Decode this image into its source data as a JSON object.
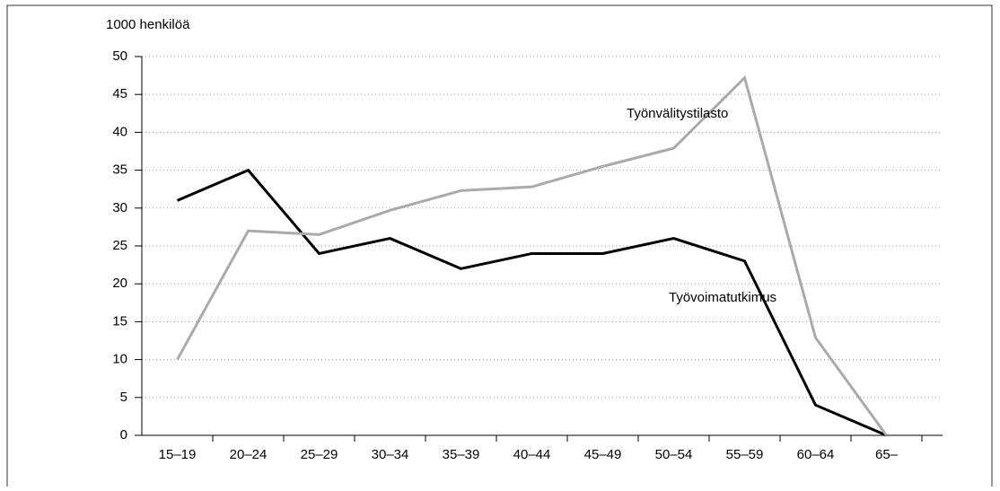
{
  "chart_data": {
    "type": "line",
    "y_label": "1000 henkilöä",
    "categories": [
      "15–19",
      "20–24",
      "25–29",
      "30–34",
      "35–39",
      "40–44",
      "45–49",
      "50–54",
      "55–59",
      "60–64",
      "65–"
    ],
    "series": [
      {
        "name": "Työvoimatutkimus",
        "color": "#000000",
        "values": [
          31,
          35,
          24,
          26,
          22,
          24,
          24,
          26,
          23,
          4,
          0
        ]
      },
      {
        "name": "Työnvälitystilasto",
        "color": "#aaaaaa",
        "values": [
          10,
          27,
          26.5,
          29.7,
          32.3,
          32.8,
          35.5,
          37.9,
          47.2,
          12.9,
          0
        ]
      }
    ],
    "ylim": [
      0,
      50
    ],
    "yticks": [
      0,
      5,
      10,
      15,
      20,
      25,
      30,
      35,
      40,
      45,
      50
    ],
    "grid": true
  }
}
